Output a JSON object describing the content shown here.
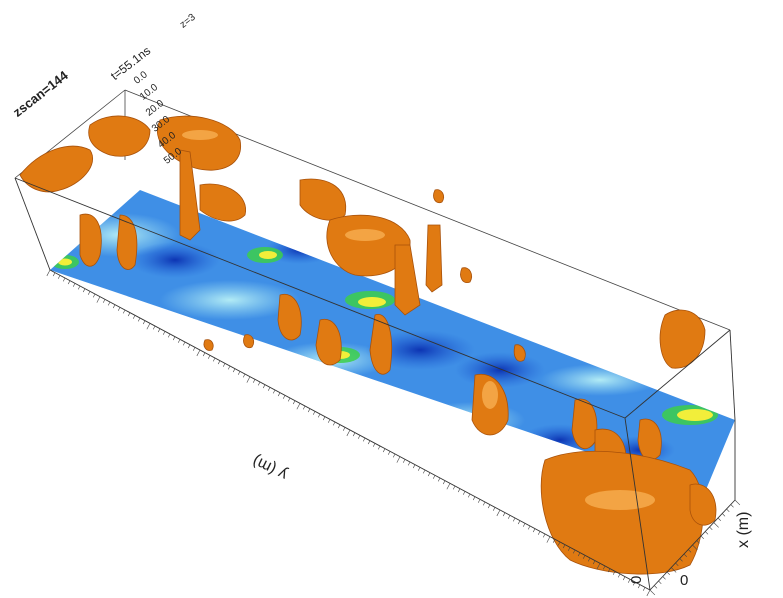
{
  "view": {
    "zscan_label": "zscan=144",
    "time_label": "t=55.1ns",
    "corner_label": "z=3",
    "depth_ticks": [
      "0.0",
      "10.0",
      "20.0",
      "30.0",
      "40.0",
      "50.0"
    ],
    "y_axis_label": "y (m)",
    "x_axis_label": "x (m)",
    "x_zero": "0",
    "y_zero": "0"
  },
  "colors": {
    "isosurface": "#e07a12",
    "isosurface_dark": "#a8510a",
    "isosurface_light": "#f5a94a",
    "slice_deep": "#0a2fb0",
    "slice_mid": "#3f8fe6",
    "slice_light": "#9fe3f2",
    "slice_green": "#3ccf4a",
    "slice_yellow": "#f2ee3a",
    "box_edge": "#333333"
  }
}
